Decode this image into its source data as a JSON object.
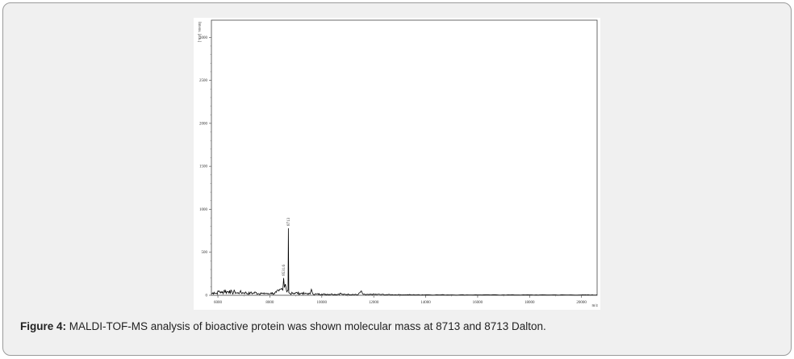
{
  "caption": {
    "label": "Figure 4:",
    "text": " MALDI-TOF-MS analysis of bioactive protein was shown molecular mass at 8713 and 8713 Dalton."
  },
  "chart_data": {
    "type": "line",
    "title": "",
    "xlabel": "m/z",
    "ylabel": "Intens. [a.u.]",
    "xlim": [
      5750,
      20600
    ],
    "ylim": [
      0,
      3200
    ],
    "xticks": [
      6000,
      8000,
      10000,
      12000,
      14000,
      16000,
      18000,
      20000
    ],
    "yticks": [
      0,
      500,
      1000,
      1500,
      2000,
      2500,
      3000
    ],
    "grid": false,
    "color": "#000000",
    "peak_labels": [
      {
        "x": 8531.6,
        "y": 200,
        "label": "8531.6"
      },
      {
        "x": 8713,
        "y": 780,
        "label": "8713"
      }
    ],
    "series": [
      {
        "x": [
          5750,
          5850,
          5950,
          6050,
          6150,
          6250,
          6350,
          6450,
          6550,
          6650,
          6750,
          6850,
          6950,
          7050,
          7150,
          7250,
          7350,
          7450,
          7550,
          7650,
          7750,
          7850,
          7950,
          8050,
          8150,
          8250,
          8350,
          8450,
          8500,
          8531.6,
          8560,
          8600,
          8650,
          8700,
          8713,
          8730,
          8780,
          8850,
          8950,
          9050,
          9150,
          9250,
          9350,
          9450,
          9550,
          9600,
          9650,
          9800,
          10000,
          10200,
          10400,
          10600,
          10700,
          10800,
          11000,
          11200,
          11400,
          11500,
          11600,
          11800,
          12000,
          12500,
          13000,
          13500,
          14000,
          15000,
          16000,
          17000,
          18000,
          19000,
          20000,
          20600
        ],
        "y": [
          20,
          35,
          25,
          50,
          30,
          60,
          40,
          55,
          30,
          45,
          25,
          40,
          30,
          35,
          20,
          30,
          25,
          35,
          20,
          28,
          18,
          25,
          15,
          30,
          20,
          35,
          50,
          80,
          60,
          200,
          90,
          130,
          40,
          60,
          780,
          30,
          20,
          35,
          25,
          30,
          20,
          28,
          18,
          22,
          15,
          70,
          18,
          15,
          14,
          12,
          15,
          10,
          25,
          10,
          12,
          10,
          8,
          45,
          10,
          8,
          12,
          8,
          7,
          6,
          6,
          5,
          5,
          5,
          4,
          4,
          4,
          4
        ]
      }
    ]
  }
}
